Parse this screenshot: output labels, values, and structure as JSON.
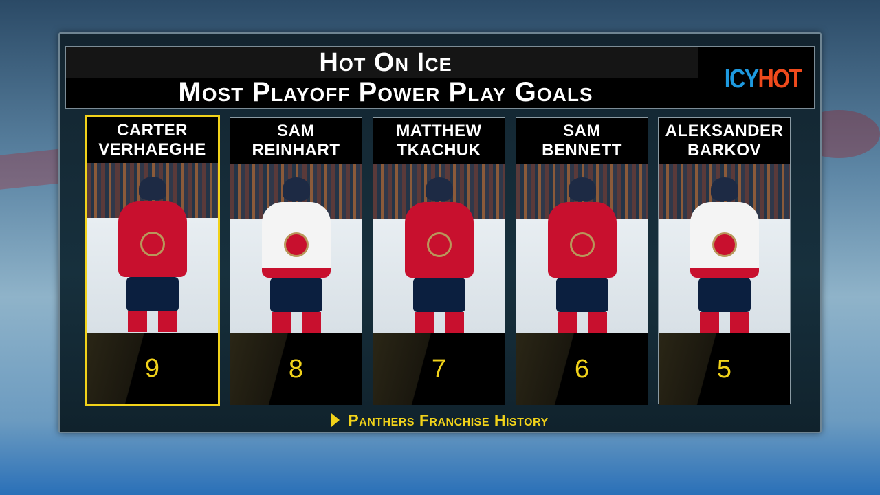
{
  "header": {
    "title": "Hot On Ice",
    "subtitle": "Most Playoff Power Play Goals",
    "sponsor_logo": {
      "text_1": "ICY",
      "text_2": "HOT",
      "colors": [
        "#1e9ae0",
        "#f04a1c"
      ]
    }
  },
  "stat": "Playoff power play goals",
  "players": [
    {
      "first": "Carter",
      "last": "Verhaeghe",
      "value": "9",
      "jersey": "red",
      "highlighted": true
    },
    {
      "first": "Sam",
      "last": "Reinhart",
      "value": "8",
      "jersey": "white",
      "highlighted": false
    },
    {
      "first": "Matthew",
      "last": "Tkachuk",
      "value": "7",
      "jersey": "red",
      "highlighted": false
    },
    {
      "first": "Sam",
      "last": "Bennett",
      "value": "6",
      "jersey": "red",
      "highlighted": false
    },
    {
      "first": "Aleksander",
      "last": "Barkov",
      "value": "5",
      "jersey": "white",
      "highlighted": false
    }
  ],
  "footer": {
    "icon": "play-triangle-icon",
    "text": "Panthers Franchise History"
  },
  "colors": {
    "accent": "#f1d21a",
    "panthers_red": "#c8102e",
    "navy": "#0b1f3f"
  }
}
